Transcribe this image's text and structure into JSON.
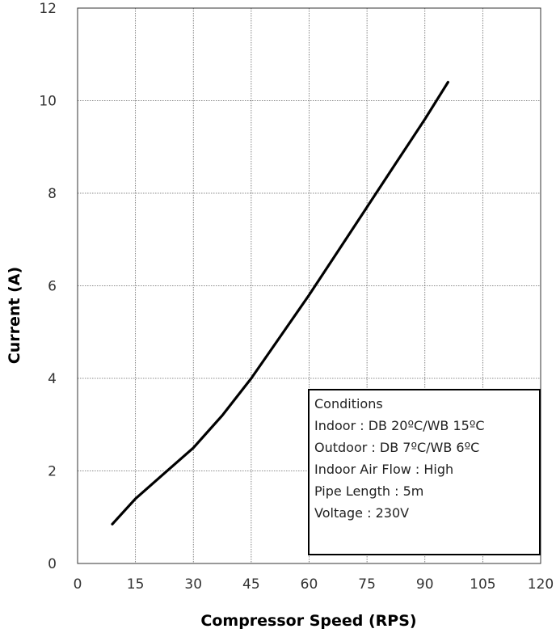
{
  "chart_data": {
    "type": "line",
    "xlabel": "Compressor Speed (RPS)",
    "ylabel": "Current (A)",
    "xlim": [
      0,
      120
    ],
    "ylim": [
      0,
      12
    ],
    "x_ticks": [
      "0",
      "15",
      "30",
      "45",
      "60",
      "75",
      "90",
      "105",
      "120"
    ],
    "y_ticks": [
      "0",
      "2",
      "4",
      "6",
      "8",
      "10",
      "12"
    ],
    "grid": true,
    "series": [
      {
        "x": [
          9,
          15,
          22.5,
          30,
          37.5,
          45,
          52.5,
          60,
          67.5,
          75,
          82.5,
          90,
          96
        ],
        "y": [
          0.85,
          1.4,
          1.95,
          2.5,
          3.2,
          4.0,
          4.9,
          5.8,
          6.75,
          7.7,
          8.65,
          9.6,
          10.4
        ]
      }
    ],
    "line_color": "#000000",
    "annotation": {
      "lines": [
        "Conditions",
        "Indoor : DB 20ºC/WB 15ºC",
        "Outdoor : DB 7ºC/WB 6ºC",
        "Indoor Air Flow : High",
        "Pipe Length : 5m",
        "Voltage : 230V"
      ],
      "placement": "bottom-right"
    }
  }
}
